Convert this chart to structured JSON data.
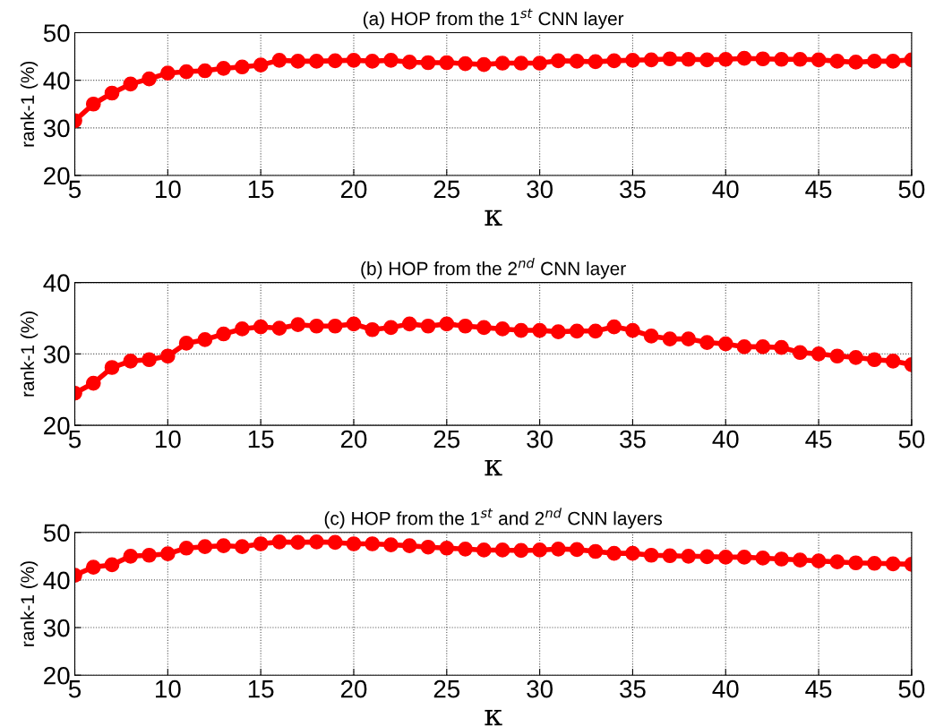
{
  "chart_data": [
    {
      "type": "line",
      "title": "(a) HOP from the 1$^{st}$ CNN layer",
      "xlabel": "κ",
      "ylabel": "rank-1 (%)",
      "x": [
        5,
        6,
        7,
        8,
        9,
        10,
        11,
        12,
        13,
        14,
        15,
        16,
        17,
        18,
        19,
        20,
        21,
        22,
        23,
        24,
        25,
        26,
        27,
        28,
        29,
        30,
        31,
        32,
        33,
        34,
        35,
        36,
        37,
        38,
        39,
        40,
        41,
        42,
        43,
        44,
        45,
        46,
        47,
        48,
        49,
        50
      ],
      "series": [
        {
          "color": "#ff0000",
          "values": [
            31.5,
            35,
            37.3,
            39.2,
            40.3,
            41.5,
            41.8,
            42,
            42.5,
            42.8,
            43.2,
            44.2,
            44,
            44,
            44.1,
            44.2,
            44,
            44.2,
            43.8,
            43.7,
            43.7,
            43.5,
            43.3,
            43.6,
            43.6,
            43.6,
            44.1,
            44,
            43.9,
            44.1,
            44.2,
            44.3,
            44.5,
            44.4,
            44.3,
            44.4,
            44.6,
            44.5,
            44.4,
            44.4,
            44.3,
            44,
            43.8,
            44,
            44,
            44.3
          ]
        }
      ],
      "xlim": [
        5,
        50
      ],
      "xticks": [
        5,
        10,
        15,
        20,
        25,
        30,
        35,
        40,
        45,
        50
      ],
      "ylim": [
        20,
        50
      ],
      "yticks": [
        20,
        30,
        40,
        50
      ],
      "grid": true,
      "marker": "circle",
      "line_style": "solid"
    },
    {
      "type": "line",
      "title": "(b) HOP from the 2$^{nd}$ CNN layer",
      "xlabel": "κ",
      "ylabel": "rank-1 (%)",
      "x": [
        5,
        6,
        7,
        8,
        9,
        10,
        11,
        12,
        13,
        14,
        15,
        16,
        17,
        18,
        19,
        20,
        21,
        22,
        23,
        24,
        25,
        26,
        27,
        28,
        29,
        30,
        31,
        32,
        33,
        34,
        35,
        36,
        37,
        38,
        39,
        40,
        41,
        42,
        43,
        44,
        45,
        46,
        47,
        48,
        49,
        50
      ],
      "series": [
        {
          "color": "#ff0000",
          "values": [
            24.5,
            25.9,
            28.1,
            29,
            29.2,
            29.7,
            31.5,
            32,
            32.8,
            33.5,
            33.8,
            33.6,
            34.1,
            33.9,
            33.9,
            34.2,
            33.4,
            33.7,
            34.2,
            33.9,
            34.2,
            33.9,
            33.7,
            33.5,
            33.3,
            33.3,
            33.1,
            33.2,
            33.2,
            33.8,
            33.3,
            32.5,
            32.1,
            32.1,
            31.6,
            31.4,
            31,
            31,
            30.9,
            30.2,
            30,
            29.7,
            29.5,
            29.2,
            29,
            28.5
          ]
        }
      ],
      "xlim": [
        5,
        50
      ],
      "xticks": [
        5,
        10,
        15,
        20,
        25,
        30,
        35,
        40,
        45,
        50
      ],
      "ylim": [
        20,
        40
      ],
      "yticks": [
        20,
        30,
        40
      ],
      "grid": true,
      "marker": "circle",
      "line_style": "solid"
    },
    {
      "type": "line",
      "title": "(c) HOP from the 1$^{st}$ and 2$^{nd}$ CNN layers",
      "xlabel": "κ",
      "ylabel": "rank-1 (%)",
      "x": [
        5,
        6,
        7,
        8,
        9,
        10,
        11,
        12,
        13,
        14,
        15,
        16,
        17,
        18,
        19,
        20,
        21,
        22,
        23,
        24,
        25,
        26,
        27,
        28,
        29,
        30,
        31,
        32,
        33,
        34,
        35,
        36,
        37,
        38,
        39,
        40,
        41,
        42,
        43,
        44,
        45,
        46,
        47,
        48,
        49,
        50
      ],
      "series": [
        {
          "color": "#ff0000",
          "values": [
            41,
            42.7,
            43.2,
            45,
            45.2,
            45.5,
            46.7,
            47,
            47.2,
            47,
            47.6,
            48,
            47.9,
            48,
            47.9,
            47.6,
            47.6,
            47.4,
            47.2,
            46.9,
            46.7,
            46.5,
            46.3,
            46.3,
            46.2,
            46.3,
            46.5,
            46.4,
            46,
            45.6,
            45.6,
            45.2,
            45.1,
            45,
            44.9,
            44.8,
            44.8,
            44.6,
            44.4,
            44.2,
            44,
            43.8,
            43.6,
            43.5,
            43.4,
            43.3
          ]
        }
      ],
      "xlim": [
        5,
        50
      ],
      "xticks": [
        5,
        10,
        15,
        20,
        25,
        30,
        35,
        40,
        45,
        50
      ],
      "ylim": [
        20,
        50
      ],
      "yticks": [
        20,
        30,
        40,
        50
      ],
      "grid": true,
      "marker": "circle",
      "line_style": "solid"
    }
  ]
}
